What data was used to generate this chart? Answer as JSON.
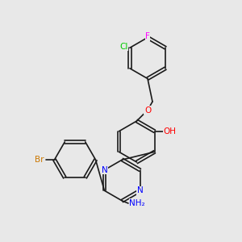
{
  "background_color": "#e8e8e8",
  "bond_color": "#1a1a1a",
  "bond_width": 1.2,
  "atom_colors": {
    "F": "#ff00ff",
    "Cl": "#00cc00",
    "Br": "#cc7700",
    "O": "#ff0000",
    "N": "#0000ff",
    "C": "#1a1a1a",
    "H": "#1a1a1a"
  },
  "font_size": 7.5
}
